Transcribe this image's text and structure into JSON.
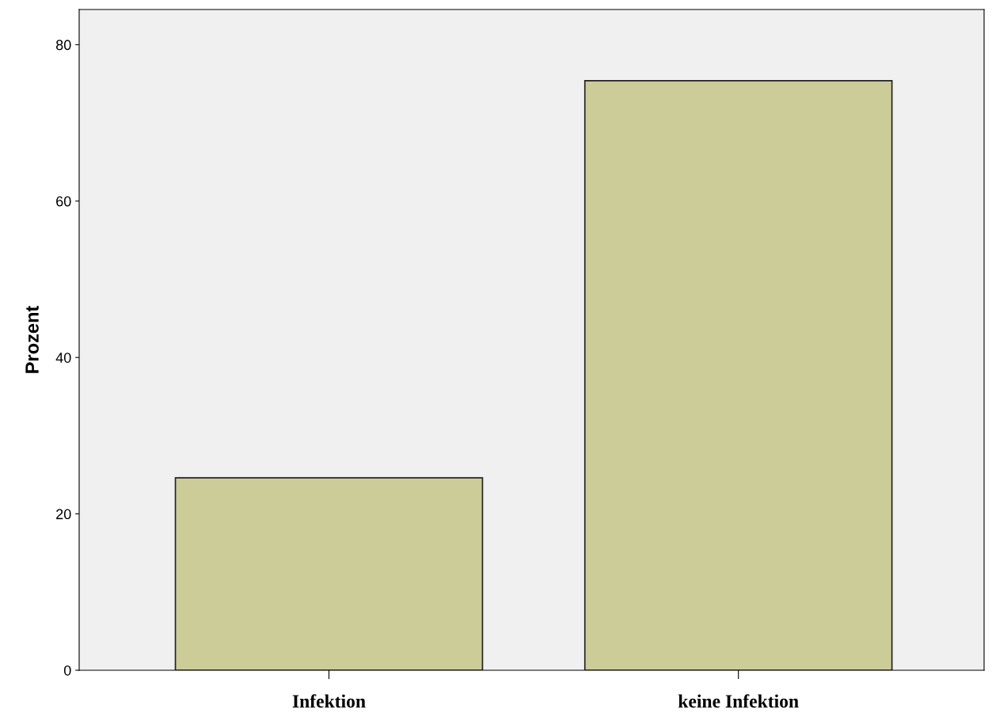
{
  "chart_data": {
    "type": "bar",
    "ylabel": "Prozent",
    "categories": [
      "Infektion",
      "keine Infektion"
    ],
    "values": [
      24.6,
      75.4
    ],
    "color": "#cccc99",
    "ylim": [
      0,
      84.5
    ],
    "yticks": [
      0,
      20,
      40,
      60,
      80
    ],
    "grid": false
  }
}
